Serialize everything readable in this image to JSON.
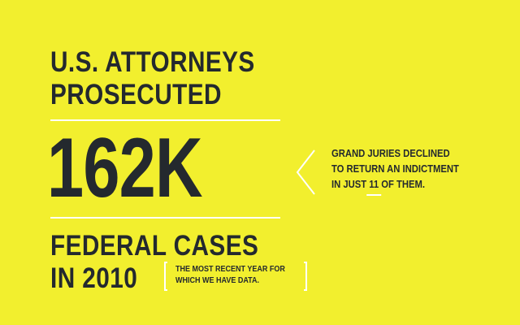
{
  "headline": {
    "line1": "U.S. ATTORNEYS",
    "line2": "PROSECUTED"
  },
  "big_number": "162K",
  "subhead": {
    "line1": "FEDERAL CASES",
    "line2": "IN 2010"
  },
  "bracket_note": {
    "line1": "THE MOST RECENT YEAR FOR",
    "line2": "WHICH WE HAVE DATA."
  },
  "side_note": {
    "line1": "GRAND JURIES DECLINED",
    "line2": "TO RETURN AN INDICTMENT",
    "line3_pre": "IN JUST ",
    "line3_num": "11",
    "line3_post": " OF THEM."
  },
  "colors": {
    "background": "#f2ef2e",
    "text": "#24292e",
    "accent": "#ffffff"
  },
  "icons": {
    "chevron": "chevron-left-icon"
  }
}
